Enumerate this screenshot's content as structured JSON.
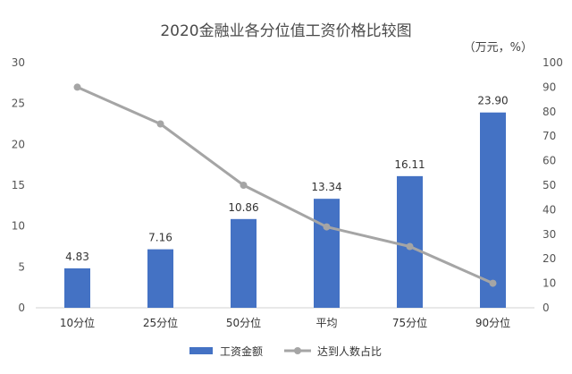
{
  "chart_data": {
    "type": "bar",
    "title": "2020金融业各分位值工资价格比较图",
    "unit_label": "（万元，%）",
    "categories": [
      "10分位",
      "25分位",
      "50分位",
      "平均",
      "75分位",
      "90分位"
    ],
    "series": [
      {
        "name": "工资金额",
        "kind": "bar",
        "axis": "left",
        "color": "#4472C4",
        "values": [
          4.83,
          7.16,
          10.86,
          13.34,
          16.11,
          23.9
        ],
        "labels": [
          "4.83",
          "7.16",
          "10.86",
          "13.34",
          "16.11",
          "23.90"
        ]
      },
      {
        "name": "达到人数占比",
        "kind": "line",
        "axis": "right",
        "color": "#A5A5A5",
        "values": [
          90,
          75,
          50,
          33,
          25,
          10
        ]
      }
    ],
    "y_left": {
      "min": 0,
      "max": 30,
      "ticks": [
        0,
        5,
        10,
        15,
        20,
        25,
        30
      ]
    },
    "y_right": {
      "min": 0,
      "max": 100,
      "ticks": [
        0,
        10,
        20,
        30,
        40,
        50,
        60,
        70,
        80,
        90,
        100
      ]
    },
    "grid": false,
    "legend_position": "bottom"
  }
}
